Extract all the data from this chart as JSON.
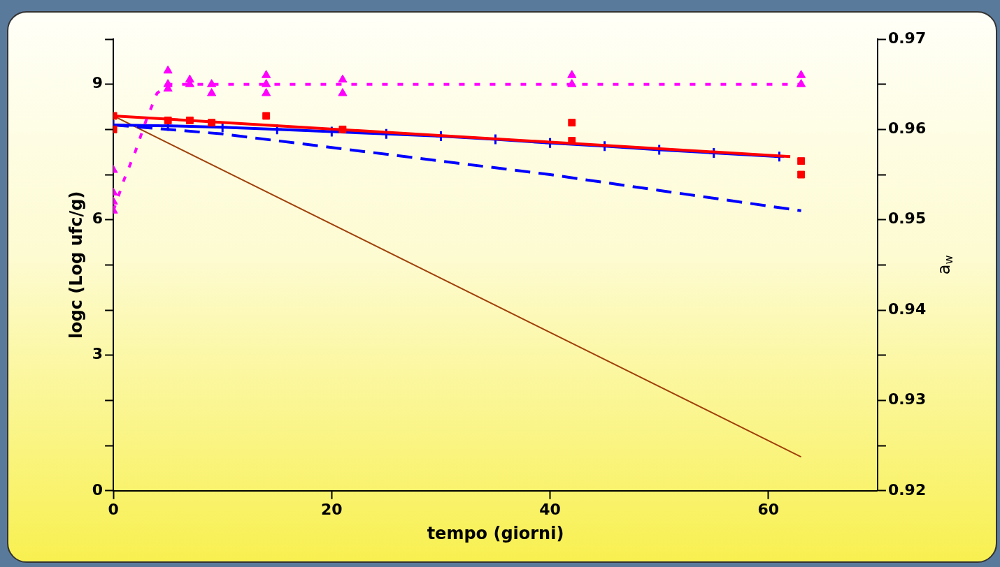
{
  "chart_data": {
    "type": "line",
    "xlabel": "tempo (giorni)",
    "ylabel": "logc (Log ufc/g)",
    "y2label": "a$_{w}$",
    "xlim": [
      0,
      70
    ],
    "xticks": [
      0,
      20,
      40,
      60
    ],
    "ylim": [
      0,
      10
    ],
    "yticks": [
      0,
      {
        "value": 1,
        "label": null
      },
      {
        "value": 2,
        "label": null
      },
      3,
      {
        "value": 4,
        "label": null
      },
      {
        "value": 5,
        "label": null
      },
      6,
      {
        "value": 7,
        "label": null
      },
      {
        "value": 8,
        "label": null
      },
      9,
      {
        "value": 10,
        "label": null
      }
    ],
    "y2lim": [
      0.92,
      0.97
    ],
    "y2ticks": [
      0.92,
      {
        "value": 0.925,
        "label": null
      },
      0.93,
      {
        "value": 0.935,
        "label": null
      },
      0.94,
      {
        "value": 0.945,
        "label": null
      },
      0.95,
      {
        "value": 0.955,
        "label": null
      },
      0.96,
      {
        "value": 0.965,
        "label": null
      },
      0.97
    ],
    "grid": false,
    "legend": false,
    "series": [
      {
        "type": "scatter",
        "color": "#ff00ff",
        "marker": "triangle",
        "x": [
          0,
          0,
          0,
          0,
          5,
          5,
          5,
          7,
          7,
          9,
          9,
          14,
          14,
          14,
          21,
          21,
          42,
          42,
          63,
          63
        ],
        "values": [
          6.2,
          6.4,
          6.6,
          7.1,
          9.0,
          9.3,
          8.9,
          9.0,
          9.1,
          8.8,
          9.0,
          8.8,
          9.2,
          9.0,
          8.8,
          9.1,
          9.0,
          9.2,
          9.0,
          9.2
        ]
      },
      {
        "type": "line",
        "color": "#ff00ff",
        "marker": "none",
        "line_style": "dotted",
        "x": [
          0,
          1,
          2,
          3,
          4,
          5,
          63
        ],
        "values": [
          6.2,
          6.9,
          7.5,
          8.2,
          8.8,
          9.0,
          9.0
        ]
      },
      {
        "type": "scatter",
        "color": "#ff0000",
        "marker": "square",
        "x": [
          0,
          0,
          5,
          7,
          9,
          14,
          21,
          42,
          42,
          63,
          63
        ],
        "values": [
          8.3,
          8.0,
          8.2,
          8.2,
          8.15,
          8.3,
          8.0,
          8.15,
          7.75,
          7.3,
          7.0
        ]
      },
      {
        "type": "line",
        "color": "#ff0000",
        "marker": "none",
        "line_style": "solid",
        "x": [
          0,
          62
        ],
        "values": [
          8.3,
          7.4
        ]
      },
      {
        "type": "line",
        "color": "#0000ff",
        "marker": "cross",
        "line_style": "solid",
        "x": [
          0,
          5,
          10,
          15,
          20,
          25,
          30,
          35,
          40,
          45,
          50,
          55,
          61
        ],
        "values": [
          8.1,
          8.08,
          8.05,
          8.0,
          7.95,
          7.9,
          7.85,
          7.78,
          7.7,
          7.63,
          7.55,
          7.48,
          7.4
        ]
      },
      {
        "type": "line",
        "color": "#0000ff",
        "marker": "none",
        "line_style": "dashed",
        "x": [
          0,
          10,
          20,
          30,
          40,
          50,
          63
        ],
        "values": [
          8.1,
          7.9,
          7.6,
          7.3,
          7.0,
          6.65,
          6.2
        ]
      },
      {
        "type": "line",
        "color": "#a0400a",
        "marker": "none",
        "line_style": "solid",
        "x": [
          0,
          63
        ],
        "values": [
          8.3,
          0.75
        ]
      }
    ]
  }
}
